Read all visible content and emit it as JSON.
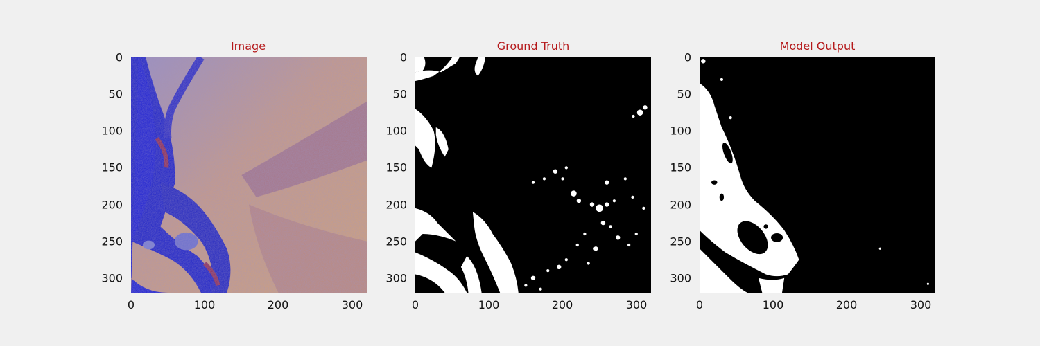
{
  "chart_data": [
    {
      "type": "heatmap",
      "title": "Image",
      "xlim": [
        0,
        320
      ],
      "ylim": [
        320,
        0
      ],
      "x_ticks": [
        "0",
        "100",
        "200",
        "300"
      ],
      "y_ticks": [
        "0",
        "50",
        "100",
        "150",
        "200",
        "250",
        "300"
      ],
      "colormap": "blue-orange satellite composite",
      "colors": {
        "water": "#1a22c8",
        "land_warm": "#d19a72",
        "land_cool": "#8c86c8",
        "dark_red": "#7a2a5a"
      }
    },
    {
      "type": "heatmap",
      "title": "Ground Truth",
      "xlim": [
        0,
        320
      ],
      "ylim": [
        320,
        0
      ],
      "x_ticks": [
        "0",
        "100",
        "200",
        "300"
      ],
      "y_ticks": [
        "0",
        "50",
        "100",
        "150",
        "200",
        "250",
        "300"
      ],
      "colormap": "binary mask",
      "colors": {
        "background": "#000000",
        "foreground": "#ffffff"
      }
    },
    {
      "type": "heatmap",
      "title": "Model Output",
      "xlim": [
        0,
        320
      ],
      "ylim": [
        320,
        0
      ],
      "x_ticks": [
        "0",
        "100",
        "200",
        "300"
      ],
      "y_ticks": [
        "0",
        "50",
        "100",
        "150",
        "200",
        "250",
        "300"
      ],
      "colormap": "binary mask",
      "colors": {
        "background": "#000000",
        "foreground": "#ffffff"
      }
    }
  ]
}
